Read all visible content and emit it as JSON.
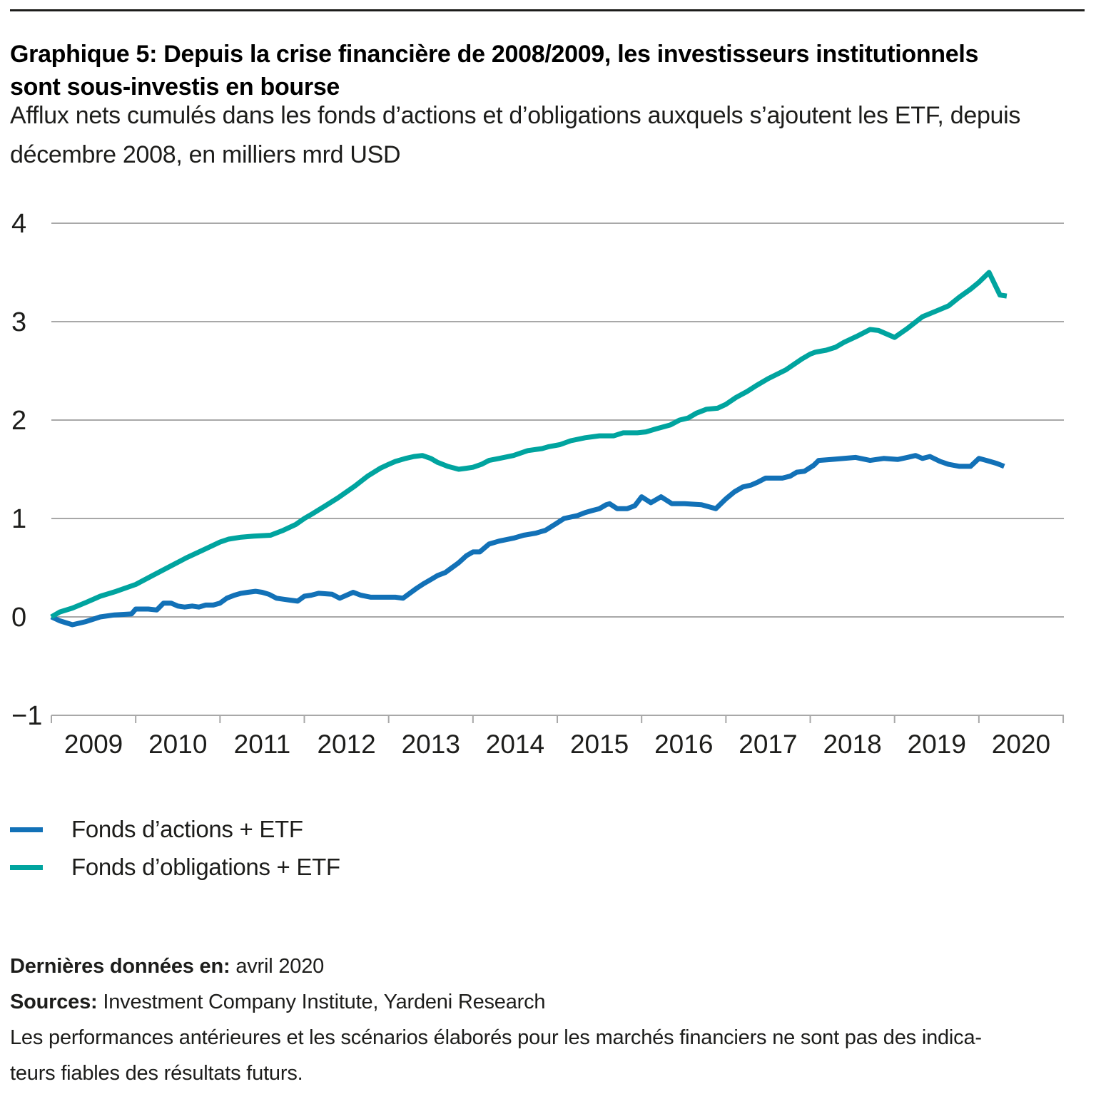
{
  "header": {
    "title": "Graphique 5: Depuis la crise financière de 2008/2009, les investisseurs institutionnels sont sous-investis en bourse",
    "subtitle": "Afflux nets cumulés dans les fonds d’actions et d’obligations auxquels s’ajoutent les ETF, depuis décembre 2008, en milliers mrd USD"
  },
  "chart_data": {
    "type": "line",
    "title": "Afflux nets cumulés dans les fonds d’actions et d’obligations + ETF, depuis décembre 2008, en milliers mrd USD",
    "xlabel": "",
    "ylabel": "",
    "x_axis": {
      "labels": [
        "2009",
        "2010",
        "2011",
        "2012",
        "2013",
        "2014",
        "2015",
        "2016",
        "2017",
        "2018",
        "2019",
        "2020"
      ],
      "range": [
        2009,
        2021
      ]
    },
    "y_axis": {
      "ticks": [
        4,
        3,
        2,
        1,
        0,
        -1
      ],
      "labels": [
        "4",
        "3",
        "2",
        "1",
        "0",
        "−1"
      ],
      "range": [
        -1,
        4
      ]
    },
    "grid": true,
    "legend_position": "bottom-left",
    "colors": {
      "grid": "#a8a8a8",
      "axis_text": "#1d1d1b"
    },
    "series": [
      {
        "name": "Fonds d’actions + ETF",
        "color": "#1271b7",
        "points": [
          [
            2009.0,
            0.0
          ],
          [
            2009.1,
            -0.04
          ],
          [
            2009.25,
            -0.08
          ],
          [
            2009.4,
            -0.05
          ],
          [
            2009.58,
            0.0
          ],
          [
            2009.75,
            0.02
          ],
          [
            2009.95,
            0.03
          ],
          [
            2010.0,
            0.08
          ],
          [
            2010.15,
            0.08
          ],
          [
            2010.25,
            0.07
          ],
          [
            2010.33,
            0.14
          ],
          [
            2010.42,
            0.14
          ],
          [
            2010.5,
            0.11
          ],
          [
            2010.58,
            0.1
          ],
          [
            2010.67,
            0.11
          ],
          [
            2010.75,
            0.1
          ],
          [
            2010.83,
            0.12
          ],
          [
            2010.92,
            0.12
          ],
          [
            2011.0,
            0.14
          ],
          [
            2011.08,
            0.19
          ],
          [
            2011.17,
            0.22
          ],
          [
            2011.25,
            0.24
          ],
          [
            2011.33,
            0.25
          ],
          [
            2011.42,
            0.26
          ],
          [
            2011.5,
            0.25
          ],
          [
            2011.58,
            0.23
          ],
          [
            2011.67,
            0.19
          ],
          [
            2011.75,
            0.18
          ],
          [
            2011.83,
            0.17
          ],
          [
            2011.92,
            0.16
          ],
          [
            2012.0,
            0.21
          ],
          [
            2012.08,
            0.22
          ],
          [
            2012.17,
            0.24
          ],
          [
            2012.33,
            0.23
          ],
          [
            2012.42,
            0.19
          ],
          [
            2012.58,
            0.25
          ],
          [
            2012.67,
            0.22
          ],
          [
            2012.79,
            0.2
          ],
          [
            2012.92,
            0.2
          ],
          [
            2013.08,
            0.2
          ],
          [
            2013.17,
            0.19
          ],
          [
            2013.25,
            0.24
          ],
          [
            2013.33,
            0.29
          ],
          [
            2013.42,
            0.34
          ],
          [
            2013.5,
            0.38
          ],
          [
            2013.58,
            0.42
          ],
          [
            2013.67,
            0.45
          ],
          [
            2013.75,
            0.5
          ],
          [
            2013.83,
            0.55
          ],
          [
            2013.92,
            0.62
          ],
          [
            2014.0,
            0.66
          ],
          [
            2014.08,
            0.66
          ],
          [
            2014.19,
            0.74
          ],
          [
            2014.31,
            0.77
          ],
          [
            2014.48,
            0.8
          ],
          [
            2014.6,
            0.83
          ],
          [
            2014.74,
            0.85
          ],
          [
            2014.86,
            0.88
          ],
          [
            2014.99,
            0.95
          ],
          [
            2015.08,
            1.0
          ],
          [
            2015.24,
            1.03
          ],
          [
            2015.33,
            1.06
          ],
          [
            2015.41,
            1.08
          ],
          [
            2015.5,
            1.1
          ],
          [
            2015.58,
            1.14
          ],
          [
            2015.62,
            1.15
          ],
          [
            2015.71,
            1.1
          ],
          [
            2015.83,
            1.1
          ],
          [
            2015.92,
            1.13
          ],
          [
            2016.0,
            1.22
          ],
          [
            2016.11,
            1.16
          ],
          [
            2016.23,
            1.22
          ],
          [
            2016.36,
            1.15
          ],
          [
            2016.51,
            1.15
          ],
          [
            2016.71,
            1.14
          ],
          [
            2016.88,
            1.1
          ],
          [
            2017.0,
            1.2
          ],
          [
            2017.1,
            1.27
          ],
          [
            2017.2,
            1.32
          ],
          [
            2017.3,
            1.34
          ],
          [
            2017.38,
            1.37
          ],
          [
            2017.47,
            1.41
          ],
          [
            2017.67,
            1.41
          ],
          [
            2017.76,
            1.43
          ],
          [
            2017.84,
            1.47
          ],
          [
            2017.93,
            1.48
          ],
          [
            2018.04,
            1.54
          ],
          [
            2018.1,
            1.59
          ],
          [
            2018.25,
            1.6
          ],
          [
            2018.4,
            1.61
          ],
          [
            2018.54,
            1.62
          ],
          [
            2018.71,
            1.59
          ],
          [
            2018.87,
            1.61
          ],
          [
            2019.04,
            1.6
          ],
          [
            2019.15,
            1.62
          ],
          [
            2019.25,
            1.64
          ],
          [
            2019.33,
            1.61
          ],
          [
            2019.42,
            1.63
          ],
          [
            2019.54,
            1.58
          ],
          [
            2019.64,
            1.55
          ],
          [
            2019.77,
            1.53
          ],
          [
            2019.9,
            1.53
          ],
          [
            2020.0,
            1.61
          ],
          [
            2020.09,
            1.59
          ],
          [
            2020.21,
            1.56
          ],
          [
            2020.3,
            1.53
          ]
        ]
      },
      {
        "name": "Fonds d’obligations + ETF",
        "color": "#00a49f",
        "points": [
          [
            2009.0,
            0.0
          ],
          [
            2009.1,
            0.05
          ],
          [
            2009.25,
            0.09
          ],
          [
            2009.42,
            0.15
          ],
          [
            2009.58,
            0.21
          ],
          [
            2009.77,
            0.26
          ],
          [
            2010.0,
            0.33
          ],
          [
            2010.2,
            0.42
          ],
          [
            2010.4,
            0.51
          ],
          [
            2010.6,
            0.6
          ],
          [
            2010.8,
            0.68
          ],
          [
            2011.0,
            0.76
          ],
          [
            2011.1,
            0.79
          ],
          [
            2011.25,
            0.81
          ],
          [
            2011.4,
            0.82
          ],
          [
            2011.6,
            0.83
          ],
          [
            2011.75,
            0.88
          ],
          [
            2011.9,
            0.94
          ],
          [
            2012.0,
            1.0
          ],
          [
            2012.1,
            1.05
          ],
          [
            2012.25,
            1.13
          ],
          [
            2012.4,
            1.21
          ],
          [
            2012.5,
            1.27
          ],
          [
            2012.6,
            1.33
          ],
          [
            2012.75,
            1.43
          ],
          [
            2012.9,
            1.51
          ],
          [
            2013.0,
            1.55
          ],
          [
            2013.08,
            1.58
          ],
          [
            2013.2,
            1.61
          ],
          [
            2013.3,
            1.63
          ],
          [
            2013.4,
            1.64
          ],
          [
            2013.5,
            1.61
          ],
          [
            2013.58,
            1.57
          ],
          [
            2013.7,
            1.53
          ],
          [
            2013.83,
            1.5
          ],
          [
            2013.92,
            1.51
          ],
          [
            2014.0,
            1.52
          ],
          [
            2014.1,
            1.55
          ],
          [
            2014.19,
            1.59
          ],
          [
            2014.31,
            1.61
          ],
          [
            2014.48,
            1.64
          ],
          [
            2014.65,
            1.69
          ],
          [
            2014.82,
            1.71
          ],
          [
            2014.9,
            1.73
          ],
          [
            2015.03,
            1.75
          ],
          [
            2015.16,
            1.79
          ],
          [
            2015.33,
            1.82
          ],
          [
            2015.5,
            1.84
          ],
          [
            2015.67,
            1.84
          ],
          [
            2015.78,
            1.87
          ],
          [
            2015.95,
            1.87
          ],
          [
            2016.05,
            1.88
          ],
          [
            2016.17,
            1.91
          ],
          [
            2016.34,
            1.95
          ],
          [
            2016.45,
            2.0
          ],
          [
            2016.55,
            2.02
          ],
          [
            2016.65,
            2.07
          ],
          [
            2016.77,
            2.11
          ],
          [
            2016.9,
            2.12
          ],
          [
            2017.0,
            2.16
          ],
          [
            2017.12,
            2.23
          ],
          [
            2017.25,
            2.29
          ],
          [
            2017.36,
            2.35
          ],
          [
            2017.5,
            2.42
          ],
          [
            2017.71,
            2.51
          ],
          [
            2017.9,
            2.62
          ],
          [
            2018.0,
            2.67
          ],
          [
            2018.06,
            2.69
          ],
          [
            2018.19,
            2.71
          ],
          [
            2018.3,
            2.74
          ],
          [
            2018.4,
            2.79
          ],
          [
            2018.55,
            2.85
          ],
          [
            2018.71,
            2.92
          ],
          [
            2018.81,
            2.91
          ],
          [
            2019.0,
            2.84
          ],
          [
            2019.15,
            2.93
          ],
          [
            2019.33,
            3.05
          ],
          [
            2019.5,
            3.11
          ],
          [
            2019.64,
            3.16
          ],
          [
            2019.77,
            3.25
          ],
          [
            2019.9,
            3.33
          ],
          [
            2020.0,
            3.4
          ],
          [
            2020.12,
            3.5
          ],
          [
            2020.25,
            3.27
          ],
          [
            2020.33,
            3.26
          ]
        ]
      }
    ]
  },
  "footer": {
    "last_data_label": "Dernières données en:",
    "last_data_value": "avril 2020",
    "sources_label": "Sources:",
    "sources_value": "Investment Company Institute, Yardeni Research",
    "disclaimer_line1": "Les performances antérieures et les scénarios élaborés pour les marchés financiers ne sont pas des indica-",
    "disclaimer_line2": "teurs fiables des résultats futurs."
  }
}
